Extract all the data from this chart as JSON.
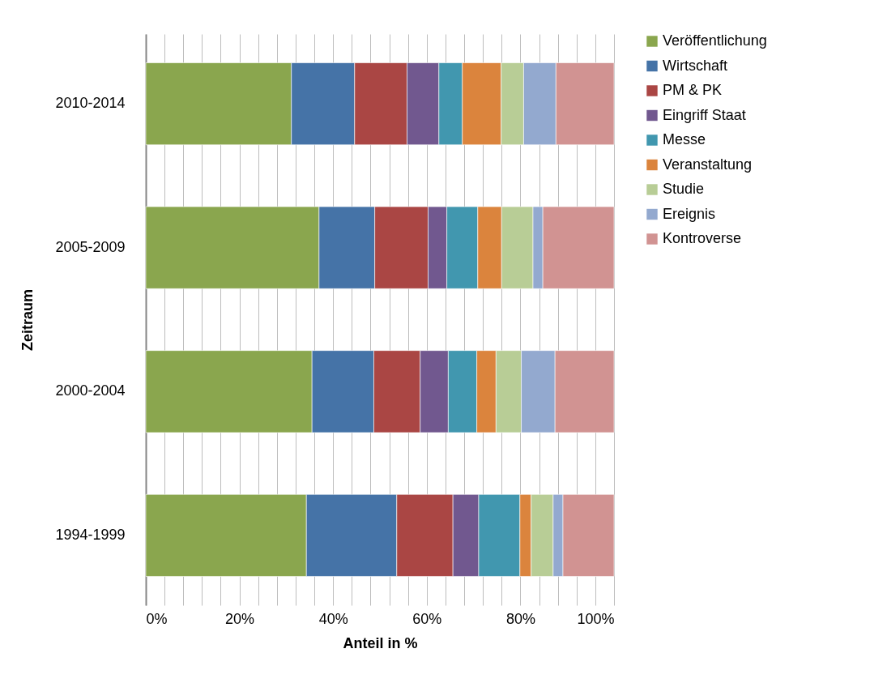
{
  "chart_data": {
    "type": "bar",
    "orientation": "horizontal",
    "stacked": true,
    "xlabel": "Anteil in %",
    "ylabel": "Zeitraum",
    "categories": [
      "2010-2014",
      "2005-2009",
      "2000-2004",
      "1994-1999"
    ],
    "series": [
      {
        "name": "Veröffentlichung",
        "color": "#8aa64e",
        "values": [
          31.1,
          37.0,
          35.5,
          34.3
        ]
      },
      {
        "name": "Wirtschaft",
        "color": "#4573a7",
        "values": [
          13.5,
          11.9,
          13.2,
          19.3
        ]
      },
      {
        "name": "PM & PK",
        "color": "#aa4644",
        "values": [
          11.2,
          11.4,
          9.9,
          12.0
        ]
      },
      {
        "name": "Eingriff Staat",
        "color": "#71588f",
        "values": [
          6.8,
          4.0,
          6.0,
          5.5
        ]
      },
      {
        "name": "Messe",
        "color": "#4197af",
        "values": [
          5.0,
          6.6,
          6.1,
          8.8
        ]
      },
      {
        "name": "Veranstaltung",
        "color": "#db843d",
        "values": [
          8.3,
          5.1,
          4.1,
          2.4
        ]
      },
      {
        "name": "Studie",
        "color": "#b8cd96",
        "values": [
          4.8,
          6.7,
          5.4,
          4.7
        ]
      },
      {
        "name": "Ereignis",
        "color": "#93a9cf",
        "values": [
          6.9,
          2.1,
          7.2,
          2.1
        ]
      },
      {
        "name": "Kontroverse",
        "color": "#d19392",
        "values": [
          12.4,
          15.2,
          12.6,
          10.9
        ]
      }
    ],
    "xlim": [
      0,
      100
    ],
    "xticks": [
      {
        "value": 0,
        "label": "0%"
      },
      {
        "value": 4,
        "label": null
      },
      {
        "value": 8,
        "label": null
      },
      {
        "value": 12,
        "label": null
      },
      {
        "value": 16,
        "label": null
      },
      {
        "value": 20,
        "label": "20%"
      },
      {
        "value": 24,
        "label": null
      },
      {
        "value": 28,
        "label": null
      },
      {
        "value": 32,
        "label": null
      },
      {
        "value": 36,
        "label": null
      },
      {
        "value": 40,
        "label": "40%"
      },
      {
        "value": 44,
        "label": null
      },
      {
        "value": 48,
        "label": null
      },
      {
        "value": 52,
        "label": null
      },
      {
        "value": 56,
        "label": null
      },
      {
        "value": 60,
        "label": "60%"
      },
      {
        "value": 64,
        "label": null
      },
      {
        "value": 68,
        "label": null
      },
      {
        "value": 72,
        "label": null
      },
      {
        "value": 76,
        "label": null
      },
      {
        "value": 80,
        "label": "80%"
      },
      {
        "value": 84,
        "label": null
      },
      {
        "value": 88,
        "label": null
      },
      {
        "value": 92,
        "label": null
      },
      {
        "value": 96,
        "label": null
      },
      {
        "value": 100,
        "label": "100%"
      }
    ],
    "grid": "x",
    "legend": "right"
  }
}
